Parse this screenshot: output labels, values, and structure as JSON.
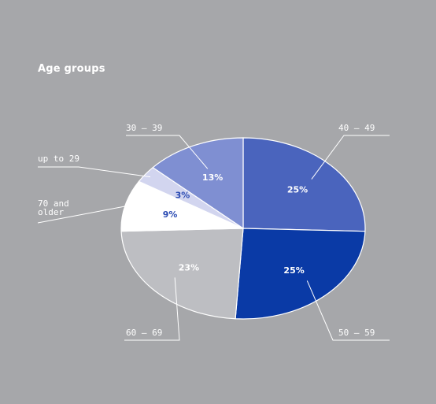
{
  "chart_data": {
    "type": "pie",
    "title": "Age groups",
    "slices": [
      {
        "category": "40 – 49",
        "value": 25,
        "label": "25%",
        "color": "#4a64bd",
        "label_color": "#ffffff"
      },
      {
        "category": "50 – 59",
        "value": 25,
        "label": "25%",
        "color": "#0a3aa6",
        "label_color": "#ffffff"
      },
      {
        "category": "60 – 69",
        "value": 23,
        "label": "23%",
        "color": "#bdbec2",
        "label_color": "#ffffff"
      },
      {
        "category": "70 and older",
        "category_lines": [
          "70 and",
          "older"
        ],
        "value": 9,
        "label": "9%",
        "color": "#ffffff",
        "label_color": "#2b4bb3"
      },
      {
        "category": "up to 29",
        "value": 3,
        "label": "3%",
        "color": "#d2d5ef",
        "label_color": "#2b4bb3"
      },
      {
        "category": "30 – 39",
        "value": 13,
        "label": "13%",
        "color": "#7f8fd2",
        "label_color": "#ffffff"
      }
    ],
    "start_angle_deg": 0,
    "direction": "clockwise",
    "legend": "none",
    "background": "#a6a7aa",
    "leader_line_color": "#ffffff"
  }
}
